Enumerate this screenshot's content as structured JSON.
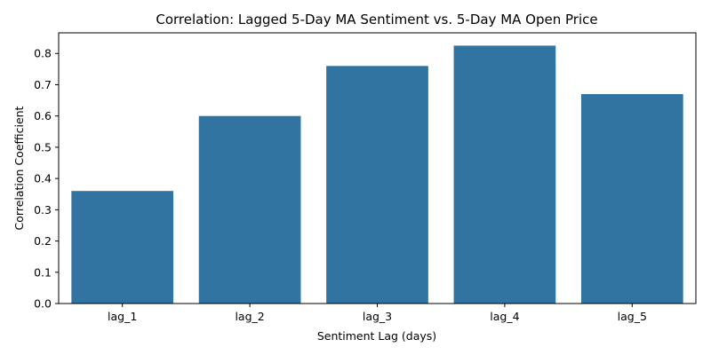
{
  "chart_data": {
    "type": "bar",
    "title": "Correlation: Lagged 5-Day MA Sentiment vs. 5-Day MA Open Price",
    "xlabel": "Sentiment Lag (days)",
    "ylabel": "Correlation Coefficient",
    "categories": [
      "lag_1",
      "lag_2",
      "lag_3",
      "lag_4",
      "lag_5"
    ],
    "values": [
      0.36,
      0.6,
      0.76,
      0.825,
      0.67
    ],
    "ylim": [
      0,
      0.866
    ],
    "yticks": [
      0.0,
      0.1,
      0.2,
      0.3,
      0.4,
      0.5,
      0.6,
      0.7,
      0.8
    ],
    "ytick_labels": [
      "0.0",
      "0.1",
      "0.2",
      "0.3",
      "0.4",
      "0.5",
      "0.6",
      "0.7",
      "0.8"
    ],
    "bar_color": "#3274a1",
    "grid": false,
    "legend": "none"
  }
}
